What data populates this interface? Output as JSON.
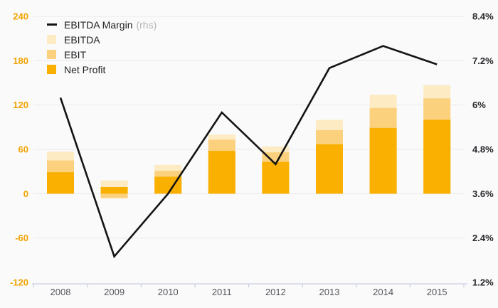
{
  "chart_data": {
    "type": "bar",
    "subtype": "overlay-bars-with-line",
    "title": "",
    "categories": [
      "2008",
      "2009",
      "2010",
      "2011",
      "2012",
      "2013",
      "2014",
      "2015"
    ],
    "series": [
      {
        "name": "EBITDA",
        "role": "bar",
        "color": "#FDEBC4",
        "values": [
          57,
          18,
          39,
          80,
          64,
          100,
          134,
          147
        ]
      },
      {
        "name": "EBIT",
        "role": "bar",
        "color": "#FBD17E",
        "values": [
          45,
          -6,
          31,
          73,
          56,
          86,
          116,
          129
        ]
      },
      {
        "name": "Net Profit",
        "role": "bar",
        "color": "#F9B000",
        "values": [
          29,
          9,
          23,
          58,
          43,
          67,
          89,
          100
        ]
      },
      {
        "name": "EBITDA Margin",
        "role": "line",
        "axis": "right",
        "color": "#141414",
        "values": [
          6.2,
          1.9,
          3.6,
          5.8,
          4.4,
          7.0,
          7.6,
          7.1
        ]
      }
    ],
    "left_axis": {
      "ticks": [
        "240",
        "180",
        "120",
        "60",
        "0",
        "-60",
        "-120"
      ],
      "min": -120,
      "max": 240,
      "color": "#F0A300"
    },
    "right_axis": {
      "ticks": [
        "8.4%",
        "7.2%",
        "6%",
        "4.8%",
        "3.6%",
        "2.4%",
        "1.2%"
      ],
      "min": 1.2,
      "max": 8.4,
      "color": "#26262B"
    },
    "legend": [
      {
        "label": "EBITDA Margin",
        "suffix": "(rhs)",
        "marker": "line",
        "color": "#141414"
      },
      {
        "label": "EBITDA",
        "marker": "box",
        "color": "#FDEBC4"
      },
      {
        "label": "EBIT",
        "marker": "box",
        "color": "#FBD17E"
      },
      {
        "label": "Net Profit",
        "marker": "box",
        "color": "#F9B000"
      }
    ],
    "legend_position": "top-left-inside",
    "grid": "horizontal-only",
    "colors": {
      "background": "#FAFAFA",
      "gridline": "#E9E9E9",
      "bottom_axis": "#C9CEE3",
      "x_labels": "#55555C"
    }
  }
}
